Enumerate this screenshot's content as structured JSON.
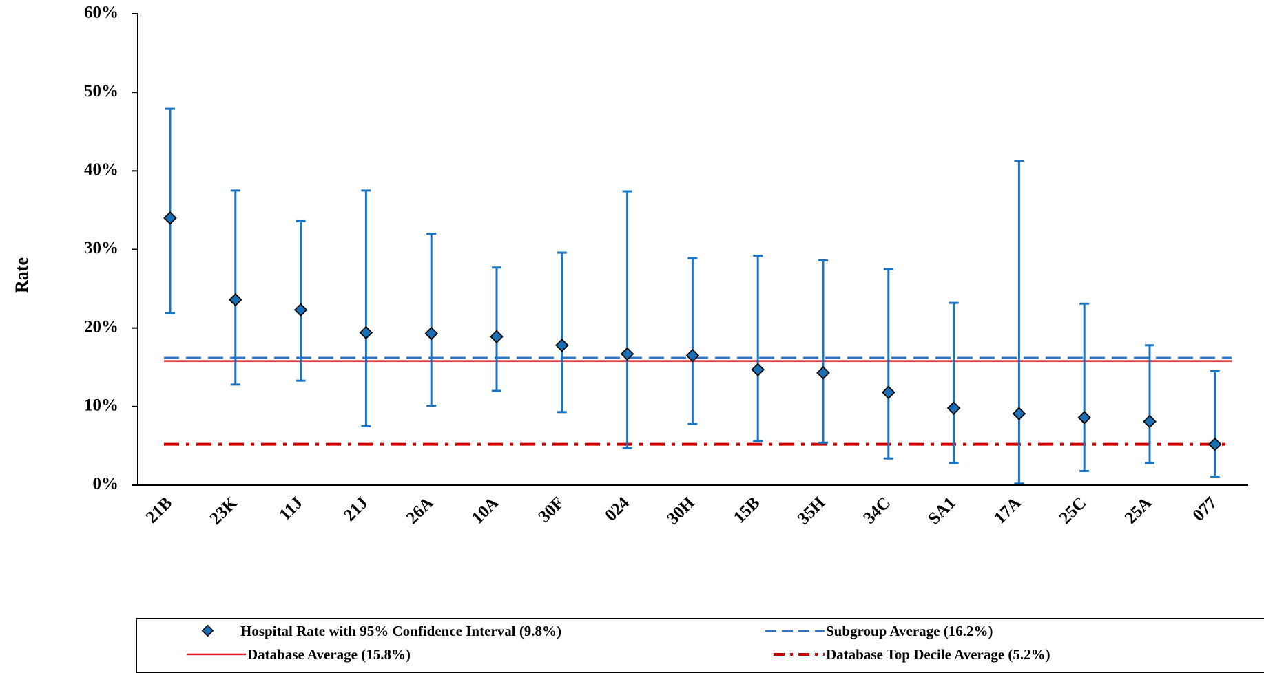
{
  "colors": {
    "ci_blue": "#1874c6",
    "marker_fill": "#1a6fb5",
    "marker_stroke": "#000000",
    "subgroup_line": "#2e75c7",
    "database_line": "#d9252a",
    "top_decile_line": "#cc0000",
    "axis": "#000000"
  },
  "chart_data": {
    "type": "scatter",
    "ylabel": "Rate",
    "ylim": [
      0,
      60
    ],
    "yticks": [
      "0%",
      "10%",
      "20%",
      "30%",
      "40%",
      "50%",
      "60%"
    ],
    "grid": false,
    "legend_position": "bottom",
    "categories": [
      "21B",
      "23K",
      "11J",
      "21J",
      "26A",
      "10A",
      "30F",
      "024",
      "30H",
      "15B",
      "35H",
      "34C",
      "SA1",
      "17A",
      "25C",
      "25A",
      "077"
    ],
    "series": [
      {
        "name": "Hospital Rate with 95% Confidence Interval (9.8%)",
        "marker": "diamond",
        "values": [
          34.0,
          23.6,
          22.3,
          19.4,
          19.3,
          18.9,
          17.8,
          16.7,
          16.5,
          14.7,
          14.3,
          11.8,
          9.8,
          9.1,
          8.6,
          8.1,
          5.2
        ],
        "ci_lower": [
          21.9,
          12.8,
          13.3,
          7.5,
          10.1,
          12.0,
          9.3,
          4.7,
          7.8,
          5.6,
          5.4,
          3.4,
          2.8,
          0.2,
          1.8,
          2.8,
          1.1
        ],
        "ci_upper": [
          47.9,
          37.5,
          33.6,
          37.5,
          32.0,
          27.7,
          29.6,
          37.4,
          28.9,
          29.2,
          28.6,
          27.5,
          23.2,
          41.3,
          23.1,
          17.8,
          14.5
        ]
      },
      {
        "name": "Subgroup Average (16.2%)",
        "type": "reference-line",
        "style": "dashed",
        "value": 16.2
      },
      {
        "name": "Database Average (15.8%)",
        "type": "reference-line",
        "style": "solid",
        "value": 15.8
      },
      {
        "name": "Database Top Decile Average (5.2%)",
        "type": "reference-line",
        "style": "dash-dot",
        "value": 5.2
      }
    ]
  }
}
